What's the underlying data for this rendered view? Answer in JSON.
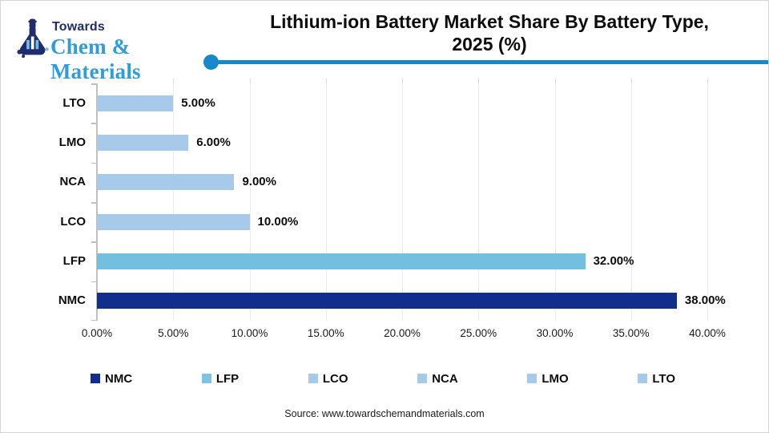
{
  "logo": {
    "line1": "Towards",
    "line2": "Chem & Materials",
    "navy": "#1f2c6d",
    "blue": "#2d9ddb"
  },
  "header": {
    "title_line1": "Lithium-ion Battery Market  Share By Battery Type,",
    "title_line2": "2025 (%)",
    "rule_color": "#1789cb"
  },
  "chart_data": {
    "type": "bar",
    "orientation": "horizontal",
    "title": "Lithium-ion Battery Market Share By Battery Type, 2025 (%)",
    "categories": [
      "LTO",
      "LMO",
      "NCA",
      "LCO",
      "LFP",
      "NMC"
    ],
    "values": [
      5,
      6,
      9,
      10,
      32,
      38
    ],
    "value_labels": [
      "5.00%",
      "6.00%",
      "9.00%",
      "10.00%",
      "32.00%",
      "38.00%"
    ],
    "bar_colors": [
      "#a7c9ea",
      "#a7c9ea",
      "#a7c9ea",
      "#a7c9ea",
      "#72bfdf",
      "#122e8d"
    ],
    "xlabel": "",
    "ylabel": "",
    "xlim": [
      0,
      40
    ],
    "x_tick_values": [
      0,
      5,
      10,
      15,
      20,
      25,
      30,
      35,
      40
    ],
    "x_tick_labels": [
      "0.00%",
      "5.00%",
      "10.00%",
      "15.00%",
      "20.00%",
      "25.00%",
      "30.00%",
      "35.00%",
      "40.00%"
    ],
    "grid": true,
    "legend_position": "bottom",
    "legend": [
      {
        "label": "NMC",
        "color": "#122e8d"
      },
      {
        "label": "LFP",
        "color": "#7fc3de"
      },
      {
        "label": "LCO",
        "color": "#a7c9ea"
      },
      {
        "label": "NCA",
        "color": "#a7c9ea"
      },
      {
        "label": "LMO",
        "color": "#a7c9ea"
      },
      {
        "label": "LTO",
        "color": "#a7c9ea"
      }
    ]
  },
  "footer": {
    "source": "Source: www.towardschemandmaterials.com"
  }
}
